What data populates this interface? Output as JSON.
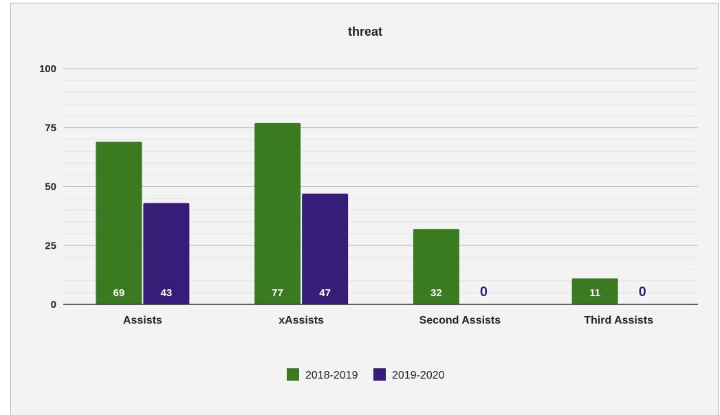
{
  "chart_data": {
    "type": "bar",
    "title": "threat",
    "categories": [
      "Assists",
      "xAssists",
      "Second Assists",
      "Third Assists"
    ],
    "series": [
      {
        "name": "2018-2019",
        "values": [
          69,
          77,
          32,
          11
        ],
        "color": "#3a7a20"
      },
      {
        "name": "2019-2020",
        "values": [
          43,
          47,
          0,
          0
        ],
        "color": "#361d77"
      }
    ],
    "ylim": [
      0,
      100
    ],
    "yticks": [
      0,
      25,
      50,
      75,
      100
    ],
    "grid": true,
    "minor_gridlines": true,
    "data_labels": true,
    "legend": "bottom"
  }
}
